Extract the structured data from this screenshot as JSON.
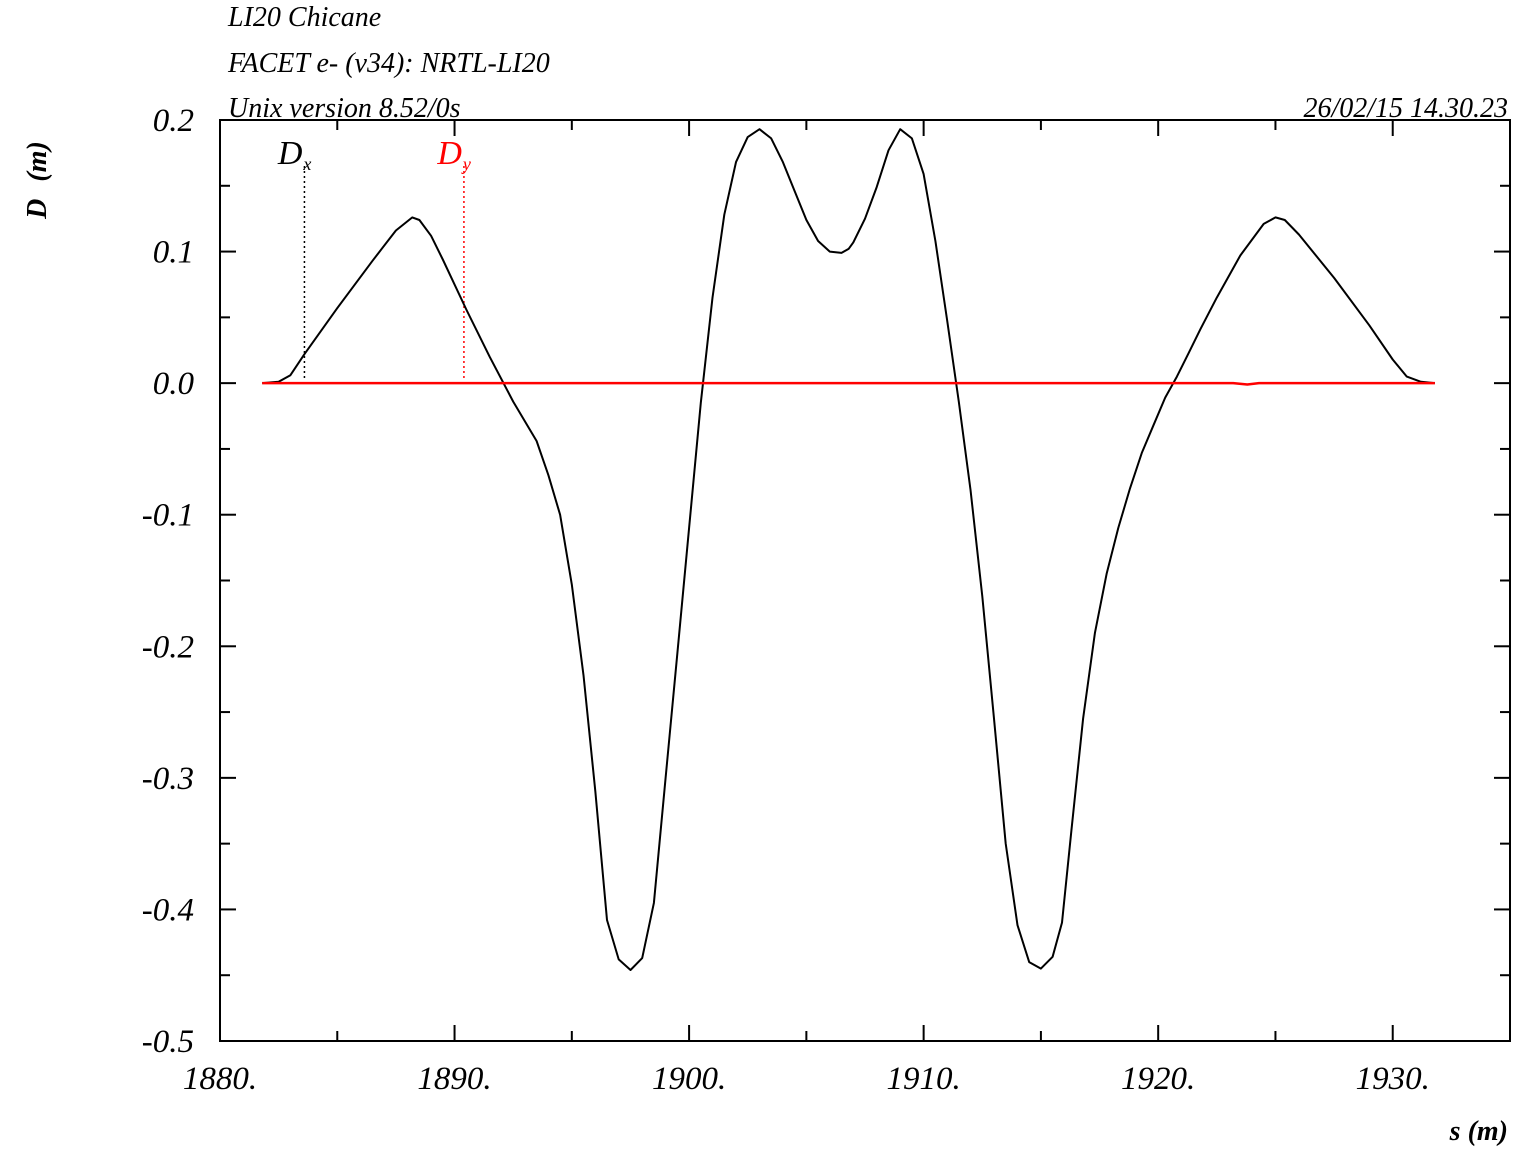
{
  "header": {
    "title_line1": "LI20 Chicane",
    "title_line2": "FACET e- (v34): NRTL-LI20",
    "title_line3": "Unix version 8.52/0s",
    "datetime": "26/02/15  14.30.23"
  },
  "colors": {
    "dx": "#000000",
    "dy": "#ff0000",
    "axis": "#000000",
    "background": "#ffffff"
  },
  "chart_data": {
    "type": "line",
    "title": "LI20 Chicane",
    "xlabel": "s (m)",
    "ylabel_main": "D",
    "ylabel_unit": "(m)",
    "xlim": [
      1880,
      1935
    ],
    "ylim": [
      -0.5,
      0.2
    ],
    "grid": false,
    "x_ticks": [
      1880,
      1890,
      1900,
      1910,
      1920,
      1930
    ],
    "x_tick_labels": [
      "1880.",
      "1890.",
      "1900.",
      "1910.",
      "1920.",
      "1930."
    ],
    "y_ticks": [
      -0.5,
      -0.4,
      -0.3,
      -0.2,
      -0.1,
      0.0,
      0.1,
      0.2
    ],
    "y_tick_labels": [
      "-0.5",
      "-0.4",
      "-0.3",
      "-0.2",
      "-0.1",
      "0.0",
      "0.1",
      "0.2"
    ],
    "legend": [
      {
        "main": "D",
        "sub": "x",
        "s_marker": 1883.6
      },
      {
        "main": "D",
        "sub": "y",
        "s_marker": 1890.4
      }
    ],
    "series": [
      {
        "name": "Dx",
        "x": [
          1881.8,
          1882.5,
          1883.0,
          1883.6,
          1885.0,
          1886.5,
          1887.5,
          1888.2,
          1888.5,
          1889.0,
          1889.5,
          1890.5,
          1891.5,
          1892.5,
          1893.5,
          1894.0,
          1894.5,
          1895.0,
          1895.5,
          1896.0,
          1896.5,
          1897.0,
          1897.5,
          1898.0,
          1898.5,
          1899.0,
          1899.5,
          1900.0,
          1900.5,
          1901.0,
          1901.5,
          1902.0,
          1902.5,
          1903.0,
          1903.5,
          1904.0,
          1904.5,
          1905.0,
          1905.5,
          1906.0,
          1906.5,
          1906.8,
          1907.0,
          1907.5,
          1908.0,
          1908.5,
          1909.0,
          1909.5,
          1910.0,
          1910.5,
          1911.0,
          1911.5,
          1912.0,
          1912.5,
          1913.0,
          1913.5,
          1914.0,
          1914.5,
          1915.0,
          1915.5,
          1915.9,
          1916.3,
          1916.8,
          1917.3,
          1917.8,
          1918.3,
          1918.8,
          1919.3,
          1919.8,
          1920.3,
          1920.8,
          1921.3,
          1921.8,
          1922.5,
          1923.5,
          1924.5,
          1925.0,
          1925.4,
          1926.0,
          1927.5,
          1929.0,
          1930.0,
          1930.6,
          1931.2,
          1931.8
        ],
        "y": [
          0.0,
          0.001,
          0.006,
          0.022,
          0.057,
          0.093,
          0.116,
          0.126,
          0.124,
          0.112,
          0.094,
          0.056,
          0.02,
          -0.014,
          -0.044,
          -0.07,
          -0.1,
          -0.153,
          -0.222,
          -0.31,
          -0.408,
          -0.438,
          -0.446,
          -0.437,
          -0.395,
          -0.3,
          -0.205,
          -0.11,
          -0.015,
          0.065,
          0.128,
          0.168,
          0.187,
          0.193,
          0.186,
          0.168,
          0.146,
          0.124,
          0.108,
          0.1,
          0.099,
          0.102,
          0.107,
          0.125,
          0.149,
          0.177,
          0.193,
          0.186,
          0.159,
          0.108,
          0.048,
          -0.014,
          -0.081,
          -0.162,
          -0.255,
          -0.35,
          -0.412,
          -0.44,
          -0.445,
          -0.436,
          -0.41,
          -0.34,
          -0.255,
          -0.19,
          -0.145,
          -0.11,
          -0.08,
          -0.053,
          -0.032,
          -0.011,
          0.005,
          0.023,
          0.041,
          0.065,
          0.097,
          0.121,
          0.126,
          0.124,
          0.113,
          0.08,
          0.044,
          0.018,
          0.005,
          0.001,
          0.0
        ]
      },
      {
        "name": "Dy",
        "x": [
          1881.8,
          1923.2,
          1923.8,
          1924.3,
          1931.8
        ],
        "y": [
          0.0,
          0.0,
          -0.001,
          0.0,
          0.0
        ]
      }
    ]
  }
}
